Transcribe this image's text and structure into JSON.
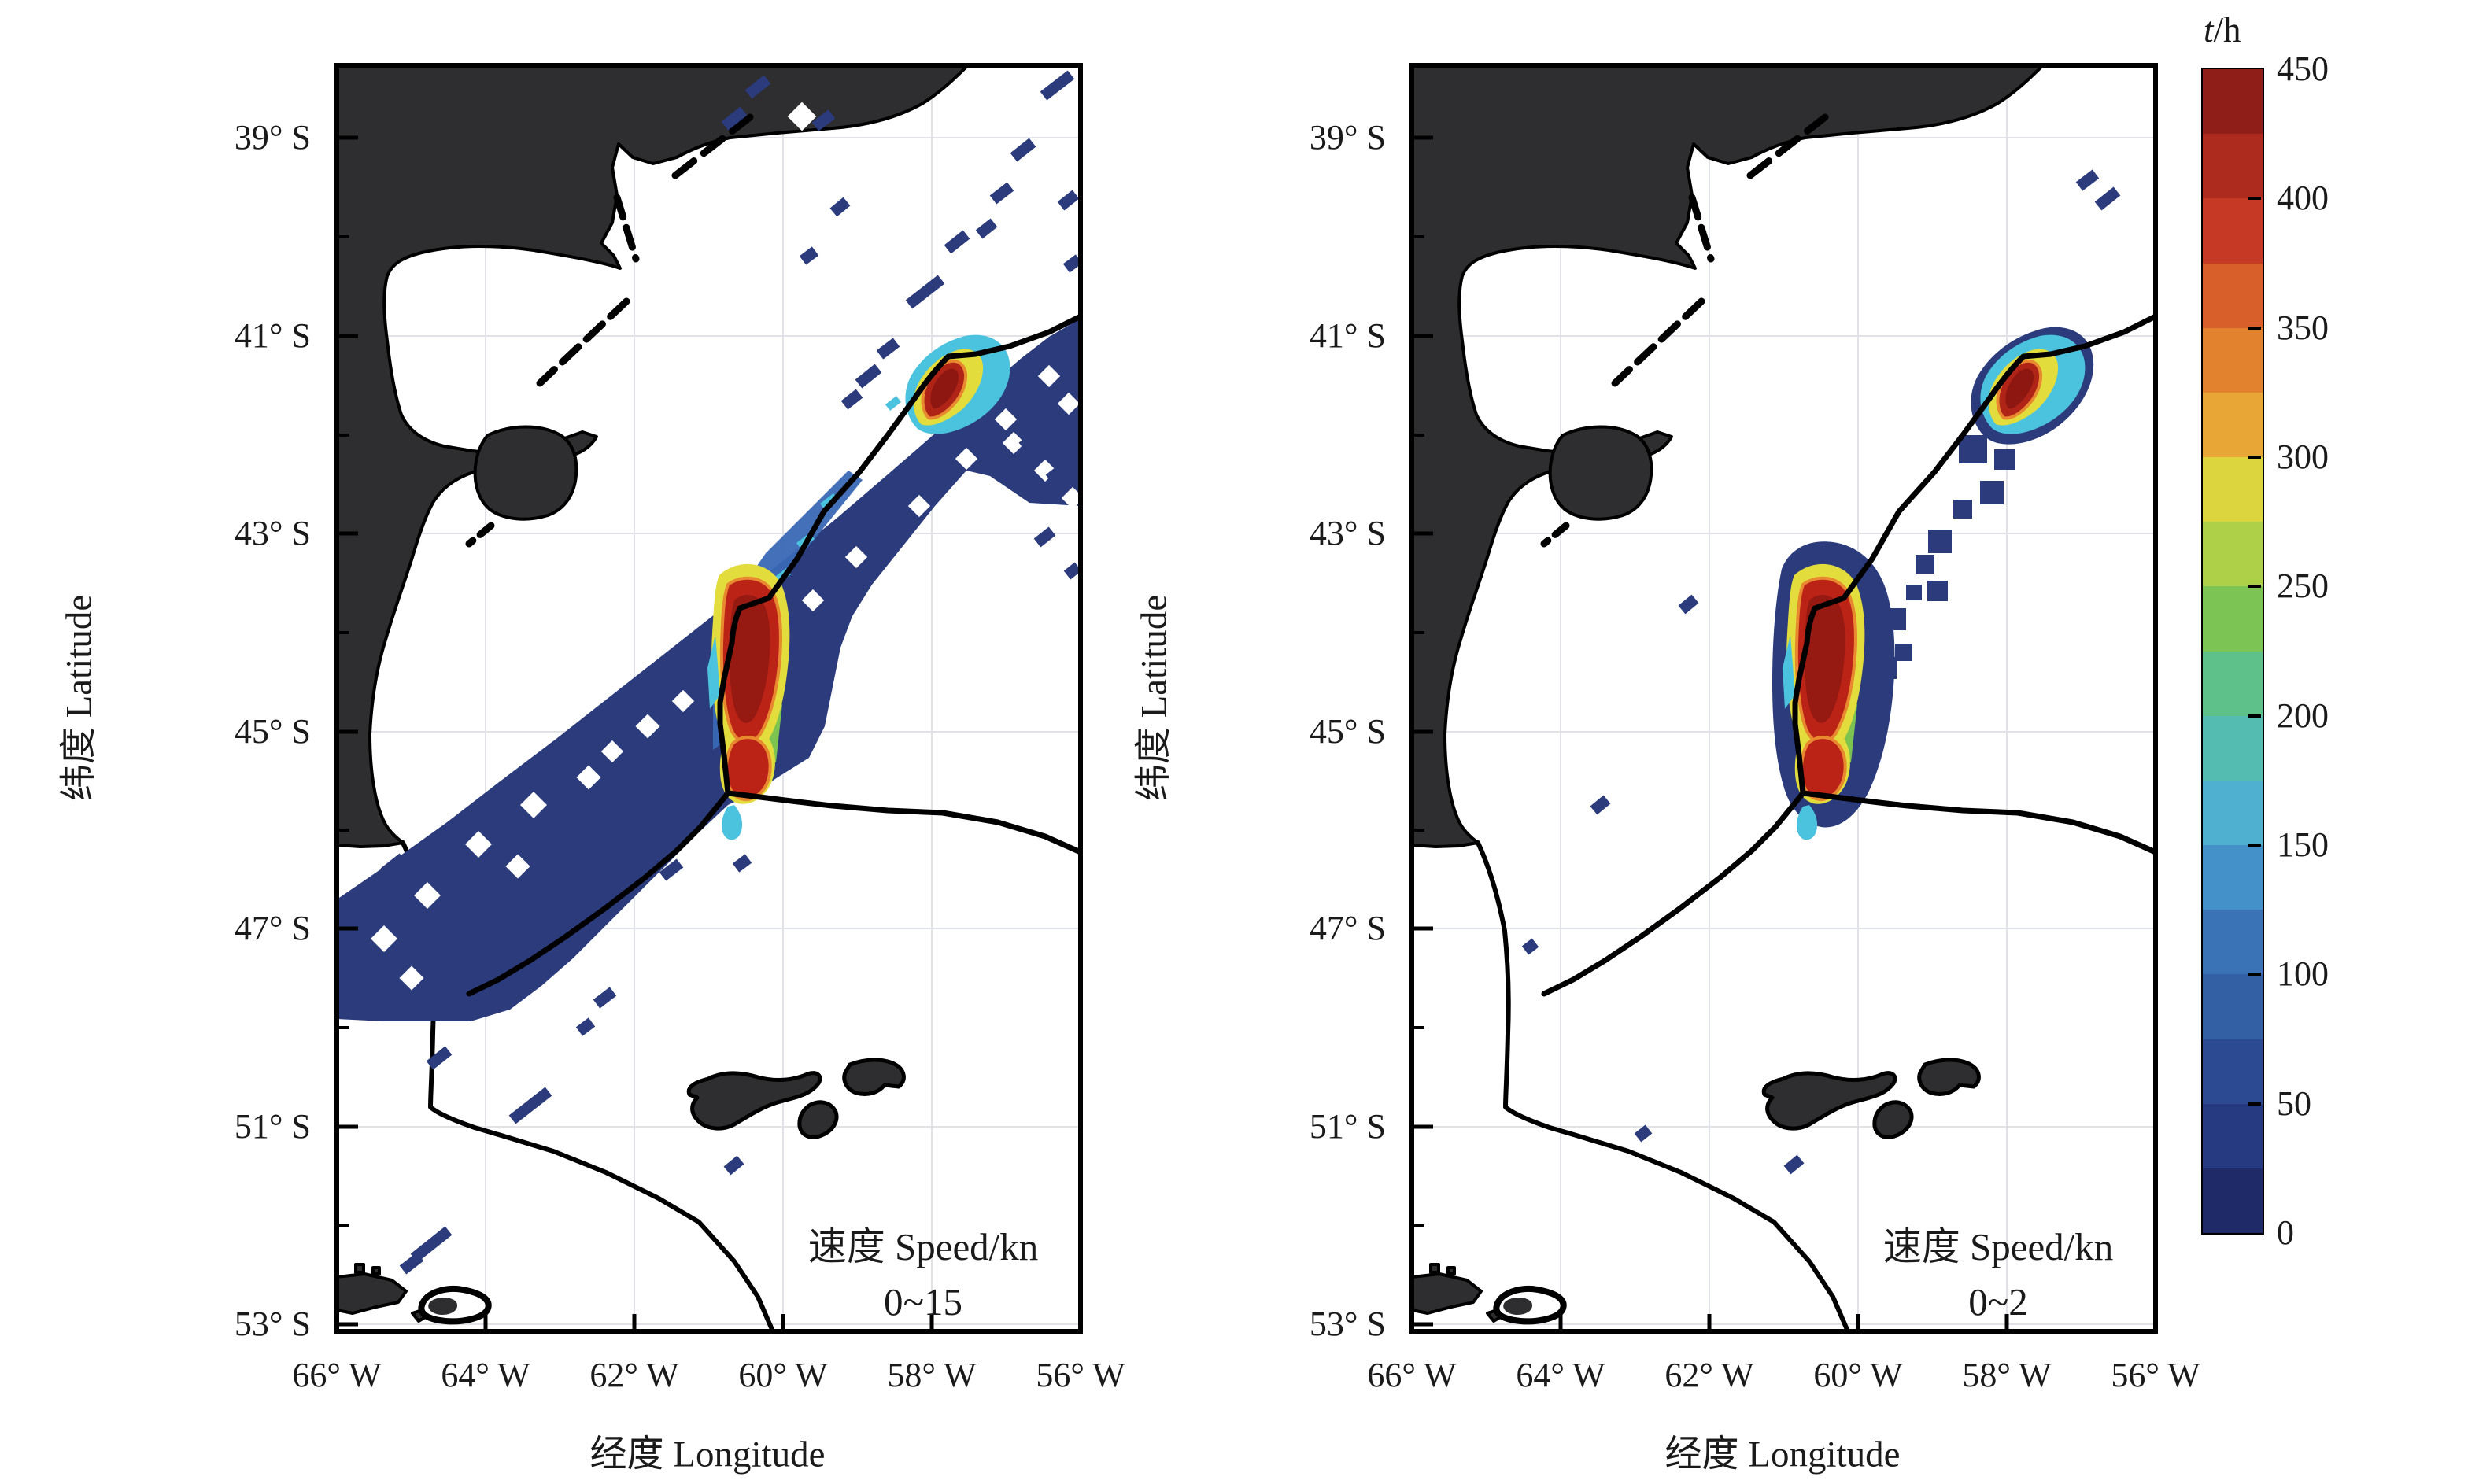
{
  "figure": {
    "description": "Two-panel geographic heatmap of fishing time (t/h) on the Patagonian shelf off Argentina, split by vessel speed class, with shared colorbar.",
    "background": "#ffffff",
    "land_color": "#2e2e30",
    "sea_color": "#ffffff",
    "boundary_line_color": "#000000",
    "base_density_color": "#2b3b7c"
  },
  "axes": {
    "lat_axis_title": "纬度 Latitude",
    "lon_axis_title": "经度 Longitude",
    "lat_labels": [
      "39° S",
      "41° S",
      "43° S",
      "45° S",
      "47° S",
      "51° S",
      "53° S"
    ],
    "lon_labels": [
      "66° W",
      "64° W",
      "62° W",
      "60° W",
      "58° W",
      "56° W"
    ]
  },
  "panels": [
    {
      "id": "left",
      "annotation_line1": "速度 Speed/kn",
      "annotation_line2": "0~15"
    },
    {
      "id": "right",
      "annotation_line1": "速度 Speed/kn",
      "annotation_line2": "0~2"
    }
  ],
  "colorbar": {
    "title_t": "t",
    "title_rest": "/h",
    "tick_labels": [
      "450",
      "400",
      "350",
      "300",
      "250",
      "200",
      "150",
      "100",
      "50",
      "0"
    ],
    "min": 0,
    "max": 450,
    "segment_colors_top_to_bottom": [
      "#8f1d18",
      "#ad2a1f",
      "#c63a25",
      "#d85f2a",
      "#e2822f",
      "#e8a636",
      "#ddd53d",
      "#aecf48",
      "#7cc453",
      "#5ec189",
      "#55bcb2",
      "#4fb0cf",
      "#4391c8",
      "#3a73b6",
      "#335fa5",
      "#2c4a92",
      "#253a80",
      "#1e2b68"
    ]
  },
  "chart_data": [
    {
      "type": "heatmap",
      "subtype": "geographic density map",
      "panel": "speed 0~15 kn",
      "annotation": "速度 Speed/kn 0~15",
      "x_axis": {
        "label": "经度 Longitude",
        "ticks_deg_W": [
          66,
          64,
          62,
          60,
          58,
          56
        ]
      },
      "y_axis": {
        "label": "纬度 Latitude",
        "ticks_deg_S": [
          39,
          41,
          43,
          45,
          47,
          51,
          53
        ]
      },
      "value_units": "t/h",
      "value_range": [
        0,
        450
      ],
      "pattern": "broad pixelated dark-blue band of effort (0-100 t/h) running SW-NE along the shelf edge from about (66W,48.5S) to (56W,40.5S), with scattered short diagonal track streaks NE of the band and sparse streaks SW of it",
      "hotspots": [
        {
          "name": "main shelf-break hotspot",
          "center_lon_W": 60.4,
          "center_lat_S": 44.6,
          "lat_extent_S": [
            43.7,
            45.4
          ],
          "peak_t_h": 450
        },
        {
          "name": "secondary northern hotspot",
          "center_lon_W": 57.9,
          "center_lat_S": 41.5,
          "peak_t_h": 450
        }
      ],
      "map_features": [
        "Argentine coastline (dark land)",
        "San Matías gulf",
        "Valdés peninsula",
        "EEZ / shelf-break boundary lines with fork near (60.3W,46.3S)",
        "Falkland Islands near (59W,51.3S)",
        "small islands near 53S"
      ]
    },
    {
      "type": "heatmap",
      "subtype": "geographic density map",
      "panel": "speed 0~2 kn",
      "annotation": "速度 Speed/kn 0~2",
      "x_axis": {
        "label": "经度 Longitude",
        "ticks_deg_W": [
          66,
          64,
          62,
          60,
          58,
          56
        ]
      },
      "y_axis": {
        "label": "纬度 Latitude",
        "ticks_deg_S": [
          39,
          41,
          43,
          45,
          47,
          51,
          53
        ]
      },
      "value_units": "t/h",
      "value_range": [
        0,
        450
      ],
      "pattern": "effort confined to the shelf break: compact red core at the main hotspot, a chain of small dark-blue patches trailing NE toward the secondary hotspot, and a few isolated specks elsewhere",
      "hotspots": [
        {
          "name": "main shelf-break hotspot",
          "center_lon_W": 60.4,
          "center_lat_S": 44.6,
          "lat_extent_S": [
            43.8,
            45.3
          ],
          "peak_t_h": 450
        },
        {
          "name": "secondary northern hotspot",
          "center_lon_W": 57.9,
          "center_lat_S": 41.5,
          "peak_t_h": 450
        }
      ],
      "map_features": [
        "Argentine coastline (dark land)",
        "San Matías gulf",
        "Valdés peninsula",
        "EEZ / shelf-break boundary lines with fork near (60.3W,46.3S)",
        "Falkland Islands near (59W,51.3S)",
        "small islands near 53S"
      ]
    }
  ]
}
